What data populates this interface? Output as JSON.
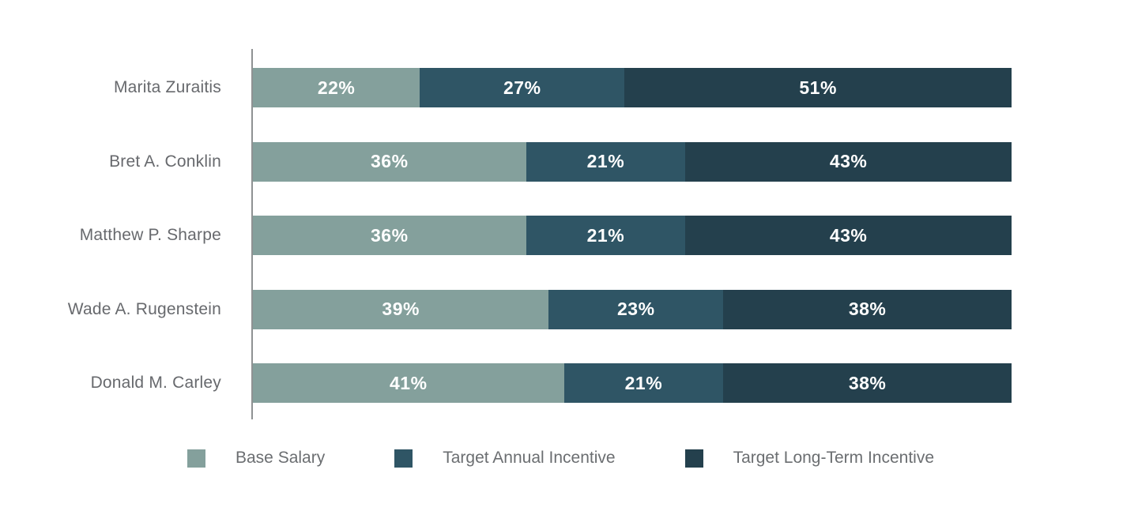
{
  "colors": {
    "base_salary": "#84A09C",
    "target_annual_incentive": "#2F5565",
    "target_long_term_incentive": "#24404D",
    "axis_line": "#8f9293",
    "category_label_text": "#67696d",
    "legend_label_text": "#6b6e71",
    "value_text": "#ffffff",
    "background": "#ffffff"
  },
  "chart_data": {
    "type": "bar",
    "orientation": "horizontal",
    "stacked": true,
    "title": "",
    "xlabel": "",
    "ylabel": "",
    "xlim": [
      0,
      100
    ],
    "grid": false,
    "legend_position": "bottom",
    "value_suffix": "%",
    "categories": [
      "Marita Zuraitis",
      "Bret A. Conklin",
      "Matthew P. Sharpe",
      "Wade A. Rugenstein",
      "Donald M. Carley"
    ],
    "series": [
      {
        "name": "Base Salary",
        "color": "#84A09C",
        "values": [
          22,
          36,
          36,
          39,
          41
        ]
      },
      {
        "name": "Target Annual Incentive",
        "color": "#2F5565",
        "values": [
          27,
          21,
          21,
          23,
          21
        ]
      },
      {
        "name": "Target Long-Term Incentive",
        "color": "#24404D",
        "values": [
          51,
          43,
          43,
          38,
          38
        ]
      }
    ]
  }
}
